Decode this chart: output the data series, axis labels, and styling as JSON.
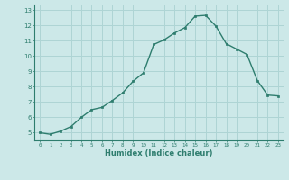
{
  "x": [
    0,
    1,
    2,
    3,
    4,
    5,
    6,
    7,
    8,
    9,
    10,
    11,
    12,
    13,
    14,
    15,
    16,
    17,
    18,
    19,
    20,
    21,
    22,
    23
  ],
  "y": [
    5.0,
    4.9,
    5.1,
    5.4,
    6.0,
    6.5,
    6.65,
    7.1,
    7.6,
    8.35,
    8.9,
    10.75,
    11.05,
    11.5,
    11.85,
    12.6,
    12.65,
    11.95,
    10.8,
    10.45,
    10.1,
    8.4,
    7.45,
    7.4
  ],
  "xlabel": "Humidex (Indice chaleur)",
  "ylabel": "",
  "xlim": [
    -0.5,
    23.5
  ],
  "ylim": [
    4.5,
    13.3
  ],
  "yticks": [
    5,
    6,
    7,
    8,
    9,
    10,
    11,
    12,
    13
  ],
  "xticks": [
    0,
    1,
    2,
    3,
    4,
    5,
    6,
    7,
    8,
    9,
    10,
    11,
    12,
    13,
    14,
    15,
    16,
    17,
    18,
    19,
    20,
    21,
    22,
    23
  ],
  "line_color": "#2e7d6e",
  "marker_color": "#2e7d6e",
  "bg_color": "#cce8e8",
  "grid_color": "#aed4d4",
  "axis_color": "#2e7d6e",
  "tick_color": "#2e7d6e",
  "label_color": "#2e7d6e"
}
